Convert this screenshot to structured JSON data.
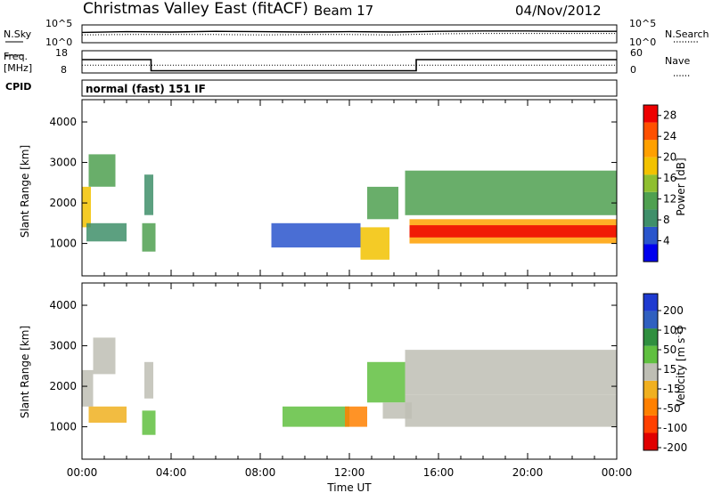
{
  "header": {
    "title": "Christmas Valley East (fitACF)",
    "beam": "Beam 17",
    "date": "04/Nov/2012"
  },
  "panels": {
    "nsky": {
      "left_label": "N.Sky",
      "left_ticks": [
        "10^5",
        "10^0"
      ],
      "right_ticks": [
        "10^5",
        "10^0"
      ],
      "right_label": "N.Search"
    },
    "freq": {
      "left_label_1": "Freq.",
      "left_label_2": "[MHz]",
      "left_ticks": [
        "18",
        "8"
      ],
      "right_ticks": [
        "60",
        "0"
      ],
      "right_label": "Nave"
    },
    "cpid": {
      "label": "CPID",
      "text": "normal (fast) 151 IF"
    }
  },
  "colors": {
    "power_scale": [
      "#0000ee",
      "#2a55cc",
      "#3f8f6a",
      "#4fa050",
      "#8fbf30",
      "#f2c200",
      "#ffa000",
      "#ff5000",
      "#ee0000"
    ],
    "velocity_scale": [
      "#1e3ad0",
      "#3060c0",
      "#2f8f3f",
      "#60c040",
      "#bebeb4",
      "#f0b020",
      "#ff8000",
      "#ff4000",
      "#e00000"
    ]
  },
  "chart_data": [
    {
      "type": "line",
      "panel": "nsky-nsearch",
      "x": [
        0,
        2,
        4,
        6,
        8,
        10,
        12,
        14,
        16,
        18,
        20,
        22,
        24
      ],
      "series": [
        {
          "values": [
            2.9,
            3.1,
            3.0,
            3.2,
            3.1,
            3.0,
            3.1,
            3.0,
            3.2,
            3.3,
            3.3,
            3.2,
            3.2
          ]
        },
        {
          "values": [
            2.2,
            2.3,
            2.3,
            2.3,
            2.2,
            2.3,
            2.3,
            2.2,
            2.5,
            2.6,
            2.6,
            2.6,
            2.6
          ]
        }
      ],
      "ylim_log10": [
        0,
        5
      ]
    },
    {
      "type": "line",
      "panel": "freq-nave",
      "x": [
        0,
        3.1,
        3.1,
        15.0,
        15.0,
        24
      ],
      "series": [
        {
          "values": [
            14,
            14,
            9,
            9,
            14,
            14
          ]
        },
        {
          "values": [
            21,
            21,
            21,
            21,
            21,
            21
          ]
        }
      ],
      "freq_ylim": [
        8,
        18
      ],
      "nave_ylim": [
        0,
        60
      ]
    },
    {
      "type": "heatmap",
      "panel": "power",
      "xlabel": "",
      "ylabel": "Slant Range [km]",
      "xlim": [
        0,
        24
      ],
      "ylim": [
        200,
        4550
      ],
      "yticks": [
        1000,
        2000,
        3000,
        4000
      ],
      "colorbar_label": "Power [dB]",
      "colorbar_ticks": [
        4,
        8,
        12,
        16,
        20,
        24,
        28
      ],
      "colorbar_range": [
        0,
        30
      ],
      "regions": [
        {
          "t0": 0.0,
          "t1": 0.4,
          "r0": 1400,
          "r1": 2400,
          "level": 5
        },
        {
          "t0": 0.3,
          "t1": 1.5,
          "r0": 2400,
          "r1": 3200,
          "level": 3
        },
        {
          "t0": 0.2,
          "t1": 2.0,
          "r0": 1050,
          "r1": 1500,
          "level": 2
        },
        {
          "t0": 2.7,
          "t1": 3.3,
          "r0": 800,
          "r1": 1500,
          "level": 3
        },
        {
          "t0": 2.8,
          "t1": 3.2,
          "r0": 1700,
          "r1": 2700,
          "level": 2
        },
        {
          "t0": 8.5,
          "t1": 12.5,
          "r0": 900,
          "r1": 1500,
          "level": 1
        },
        {
          "t0": 12.5,
          "t1": 13.8,
          "r0": 600,
          "r1": 1400,
          "level": 5
        },
        {
          "t0": 12.8,
          "t1": 14.2,
          "r0": 1600,
          "r1": 2400,
          "level": 3
        },
        {
          "t0": 14.5,
          "t1": 24.0,
          "r0": 1700,
          "r1": 2800,
          "level": 3
        },
        {
          "t0": 14.7,
          "t1": 24.0,
          "r0": 1000,
          "r1": 1600,
          "level": 6
        },
        {
          "t0": 14.7,
          "t1": 24.0,
          "r0": 1150,
          "r1": 1450,
          "level": 8
        }
      ]
    },
    {
      "type": "heatmap",
      "panel": "velocity",
      "xlabel": "Time UT",
      "ylabel": "Slant Range [km]",
      "xlim": [
        0,
        24
      ],
      "ylim": [
        200,
        4550
      ],
      "yticks": [
        1000,
        2000,
        3000,
        4000
      ],
      "xticks": [
        "00:00",
        "04:00",
        "08:00",
        "12:00",
        "16:00",
        "20:00",
        "00:00"
      ],
      "colorbar_label": "Velocity [m s^-1]",
      "colorbar_ticks": [
        200,
        100,
        50,
        15,
        -15,
        -50,
        -100,
        -200
      ],
      "regions": [
        {
          "t0": 0.0,
          "t1": 0.5,
          "r0": 1500,
          "r1": 2400,
          "level": 4
        },
        {
          "t0": 0.5,
          "t1": 1.5,
          "r0": 2300,
          "r1": 3200,
          "level": 4
        },
        {
          "t0": 0.3,
          "t1": 2.0,
          "r0": 1100,
          "r1": 1500,
          "level": 5
        },
        {
          "t0": 2.7,
          "t1": 3.3,
          "r0": 800,
          "r1": 1400,
          "level": 3
        },
        {
          "t0": 2.8,
          "t1": 3.2,
          "r0": 1700,
          "r1": 2600,
          "level": 4
        },
        {
          "t0": 9.0,
          "t1": 12.0,
          "r0": 1000,
          "r1": 1500,
          "level": 3
        },
        {
          "t0": 11.8,
          "t1": 12.8,
          "r0": 1000,
          "r1": 1500,
          "level": 6
        },
        {
          "t0": 12.8,
          "t1": 14.5,
          "r0": 1600,
          "r1": 2600,
          "level": 3
        },
        {
          "t0": 13.5,
          "t1": 14.8,
          "r0": 1200,
          "r1": 1600,
          "level": 4
        },
        {
          "t0": 14.5,
          "t1": 24.0,
          "r0": 1000,
          "r1": 1800,
          "level": 4
        },
        {
          "t0": 14.5,
          "t1": 24.0,
          "r0": 1800,
          "r1": 2900,
          "level": 4
        }
      ]
    }
  ]
}
